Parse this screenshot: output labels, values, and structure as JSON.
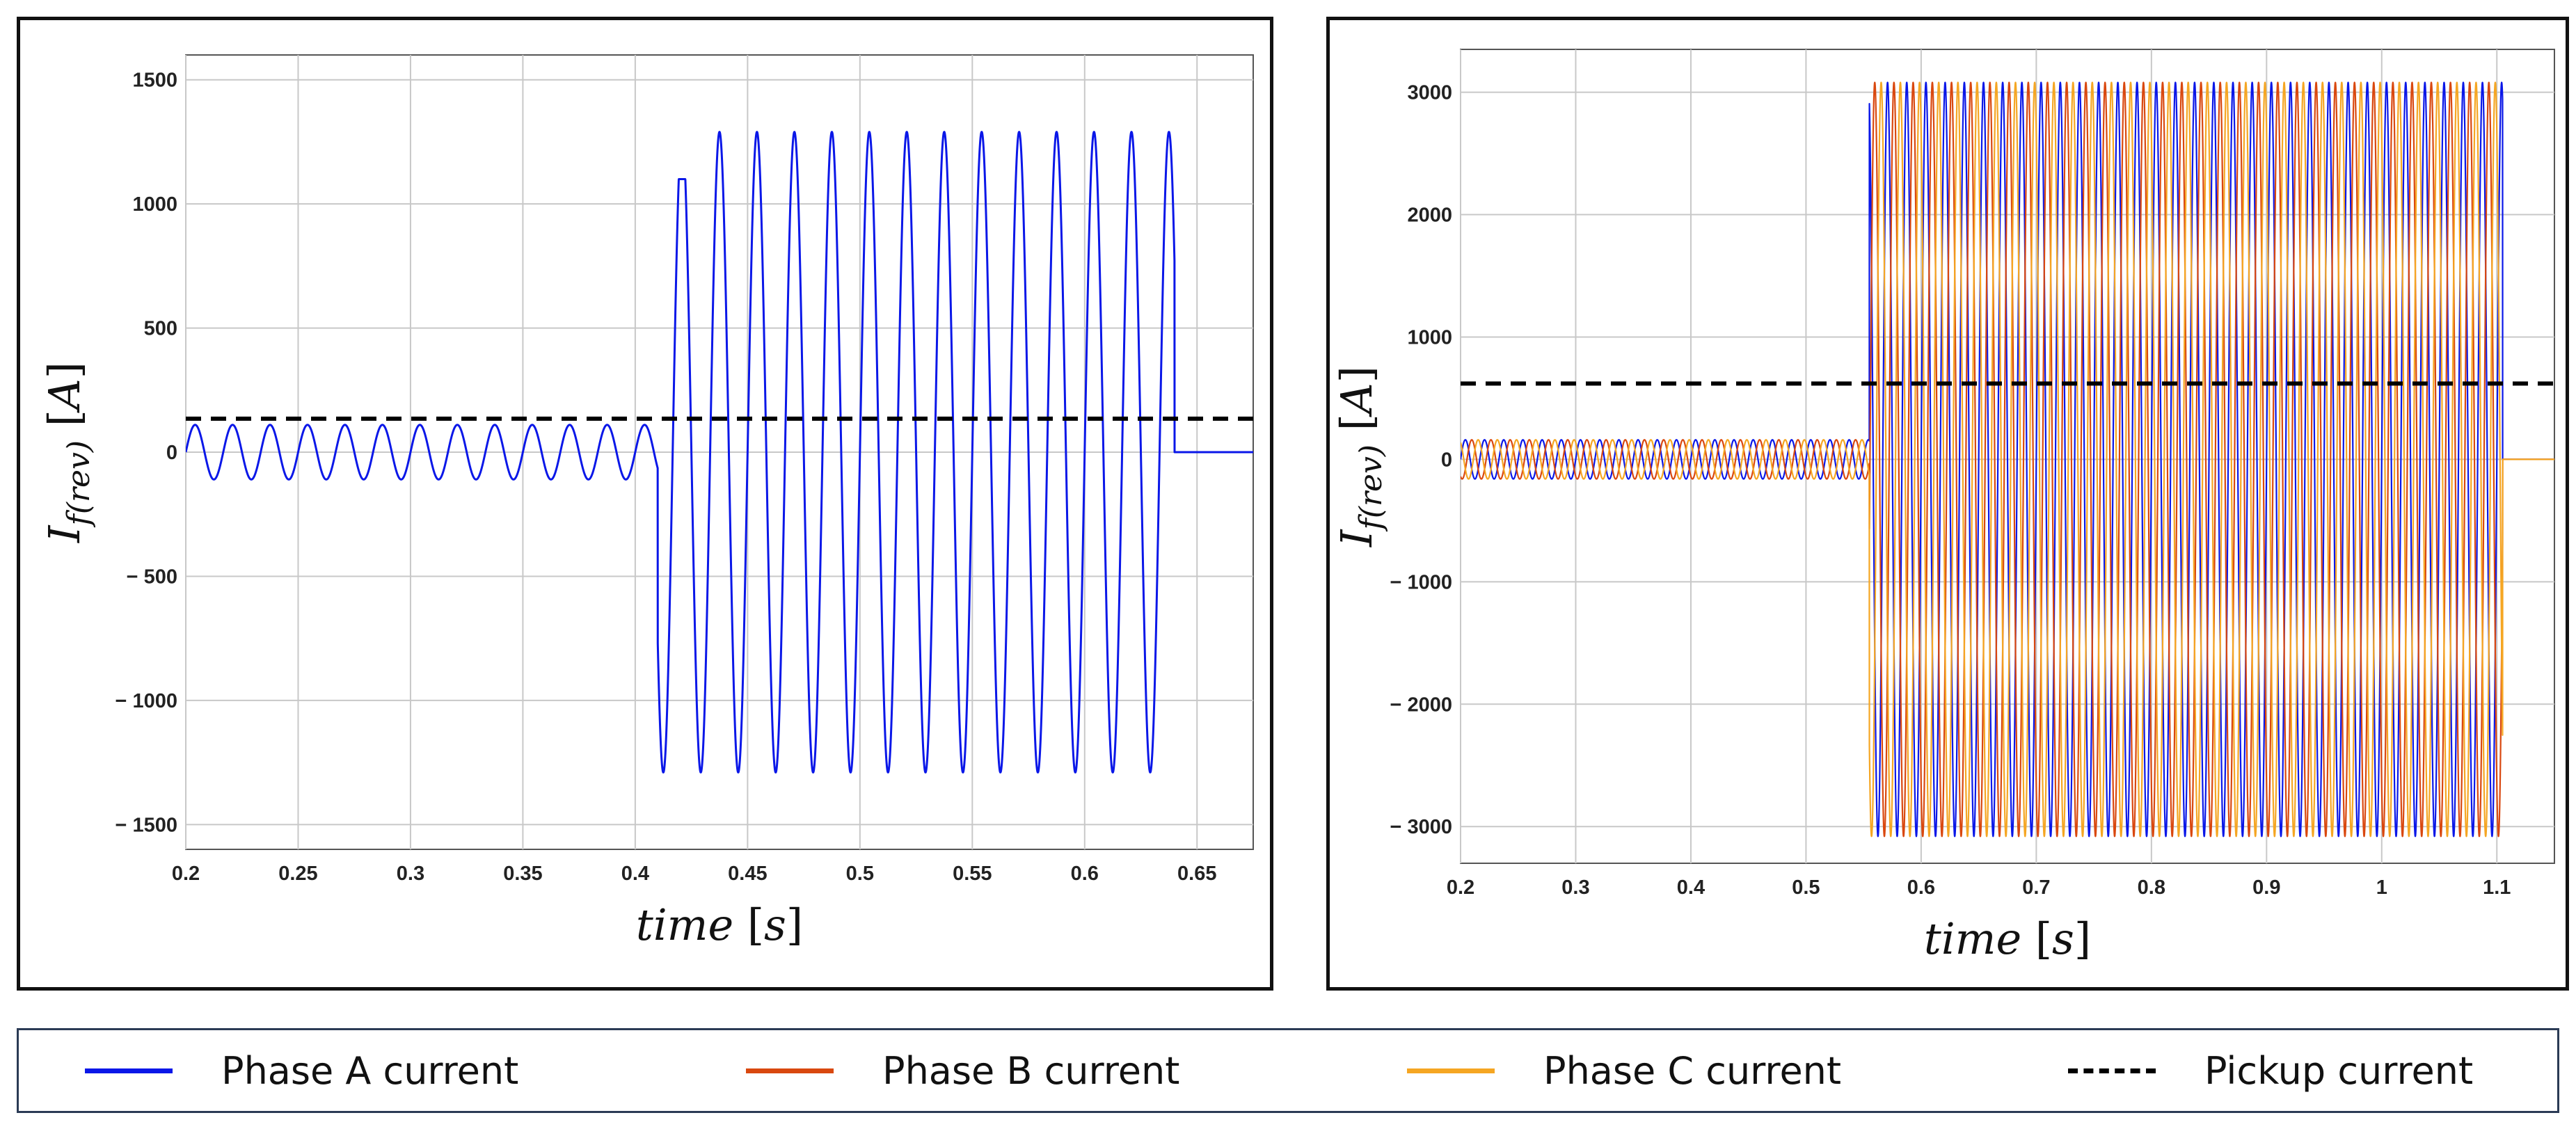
{
  "colors": {
    "phase_a": "#0a17e8",
    "phase_b": "#d9480f",
    "phase_c": "#f5a623",
    "pickup": "#000000",
    "grid": "#c8c8c8",
    "frame": "#111111"
  },
  "legend": [
    {
      "label": "Phase A current",
      "color": "#0a17e8",
      "style": "solid"
    },
    {
      "label": "Phase B current",
      "color": "#d9480f",
      "style": "solid"
    },
    {
      "label": "Phase C current",
      "color": "#f5a623",
      "style": "solid"
    },
    {
      "label": "Pickup current",
      "color": "#000000",
      "style": "dashed"
    }
  ],
  "chart_data": [
    {
      "type": "line",
      "xlabel": "time [s]",
      "ylabel": "I_f(rev) [A]",
      "xlim": [
        0.2,
        0.675
      ],
      "ylim": [
        -1600,
        1600
      ],
      "xticks": [
        0.2,
        0.25,
        0.3,
        0.35,
        0.4,
        0.45,
        0.5,
        0.55,
        0.6,
        0.65
      ],
      "xtick_labels": [
        "0.2",
        "0.25",
        "0.3",
        "0.35",
        "0.4",
        "0.45",
        "0.5",
        "0.55",
        "0.6",
        "0.65"
      ],
      "yticks": [
        -1500,
        -1000,
        -500,
        0,
        500,
        1000,
        1500
      ],
      "ytick_labels": [
        "− 1500",
        "− 1000",
        "− 500",
        "0",
        "500",
        "1000",
        "1500"
      ],
      "grid": true,
      "series": [
        {
          "name": "Phase A current",
          "color": "#0a17e8",
          "waveform": {
            "frequency_hz": 60,
            "segments": [
              {
                "t_start": 0.2,
                "t_end": 0.41,
                "amplitude": 110
              },
              {
                "t_start": 0.41,
                "t_end": 0.64,
                "amplitude": 1290
              },
              {
                "t_start": 0.64,
                "t_end": 0.675,
                "amplitude": 0
              }
            ],
            "first_fault_peak": 1100,
            "fault_trough": -1300
          }
        },
        {
          "name": "Pickup current",
          "color": "#000000",
          "style": "dashed",
          "x": [
            0.2,
            0.675
          ],
          "y": [
            135,
            135
          ]
        }
      ]
    },
    {
      "type": "line",
      "xlabel": "time [s]",
      "ylabel": "I_f(rev) [A]",
      "xlim": [
        0.2,
        1.15
      ],
      "ylim": [
        -3300,
        3350
      ],
      "xticks": [
        0.2,
        0.3,
        0.4,
        0.5,
        0.6,
        0.7,
        0.8,
        0.9,
        1.0,
        1.1
      ],
      "xtick_labels": [
        "0.2",
        "0.3",
        "0.4",
        "0.5",
        "0.6",
        "0.7",
        "0.8",
        "0.9",
        "1",
        "1.1"
      ],
      "yticks": [
        -3000,
        -2000,
        -1000,
        0,
        1000,
        2000,
        3000
      ],
      "ytick_labels": [
        "− 3000",
        "− 2000",
        "− 1000",
        "0",
        "1000",
        "2000",
        "3000"
      ],
      "grid": true,
      "series": [
        {
          "name": "Phase A current",
          "color": "#0a17e8",
          "waveform": {
            "frequency_hz": 60,
            "phase_deg": 0,
            "segments": [
              {
                "t_start": 0.2,
                "t_end": 0.555,
                "amplitude": 160
              },
              {
                "t_start": 0.555,
                "t_end": 1.105,
                "amplitude": 3080
              },
              {
                "t_start": 1.105,
                "t_end": 1.15,
                "amplitude": 0
              }
            ]
          }
        },
        {
          "name": "Phase B current",
          "color": "#d9480f",
          "waveform": {
            "frequency_hz": 60,
            "phase_deg": -120,
            "segments": [
              {
                "t_start": 0.2,
                "t_end": 0.555,
                "amplitude": 160
              },
              {
                "t_start": 0.555,
                "t_end": 1.105,
                "amplitude": 3080
              },
              {
                "t_start": 1.105,
                "t_end": 1.15,
                "amplitude": 0
              }
            ]
          }
        },
        {
          "name": "Phase C current",
          "color": "#f5a623",
          "waveform": {
            "frequency_hz": 60,
            "phase_deg": 120,
            "segments": [
              {
                "t_start": 0.2,
                "t_end": 0.555,
                "amplitude": 160
              },
              {
                "t_start": 0.555,
                "t_end": 1.105,
                "amplitude": 3080
              },
              {
                "t_start": 1.105,
                "t_end": 1.15,
                "amplitude": 0
              }
            ]
          }
        },
        {
          "name": "Pickup current",
          "color": "#000000",
          "style": "dashed",
          "x": [
            0.2,
            1.15
          ],
          "y": [
            620,
            620
          ]
        }
      ]
    }
  ]
}
